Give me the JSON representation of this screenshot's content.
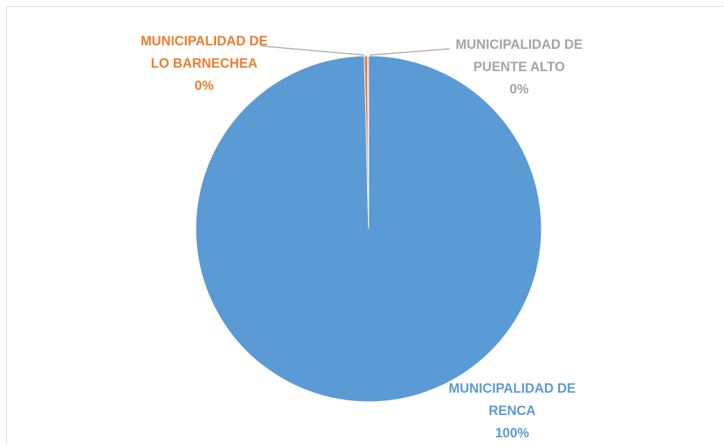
{
  "chart_data": {
    "type": "pie",
    "categories": [
      "MUNICIPALIDAD DE RENCA",
      "MUNICIPALIDAD DE LO BARNECHEA",
      "MUNICIPALIDAD DE PUENTE ALTO"
    ],
    "values": [
      99.6,
      0.3,
      0.1
    ],
    "value_labels": [
      "100%",
      "0%",
      "0%"
    ],
    "colors": [
      "#5b9bd5",
      "#ed7d31",
      "#a5a5a5"
    ]
  }
}
